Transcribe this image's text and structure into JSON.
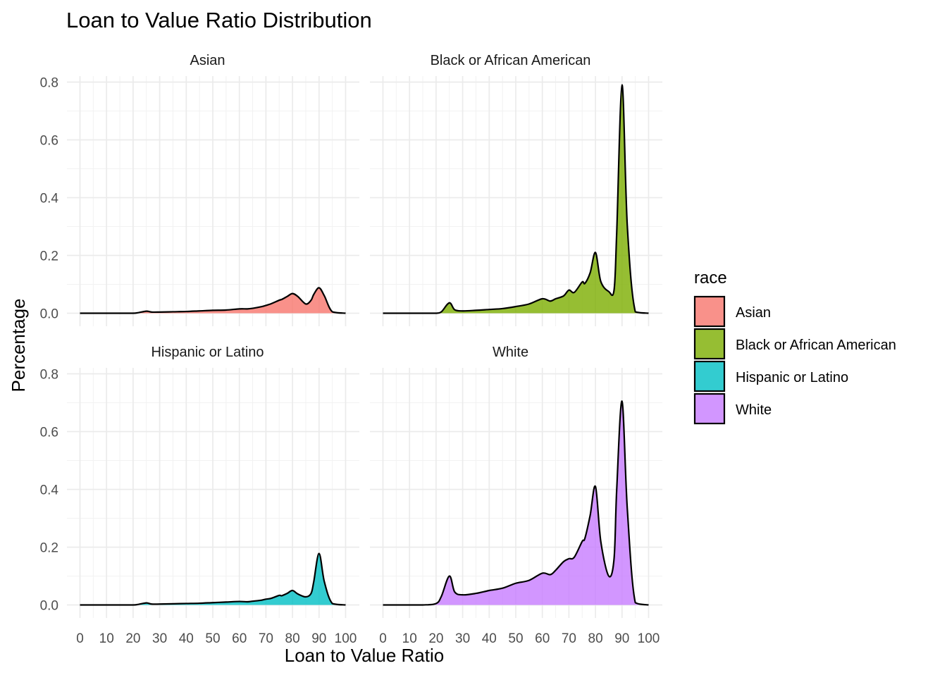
{
  "chart_data": {
    "type": "area",
    "title": "Loan to Value Ratio Distribution",
    "xlabel": "Loan to Value Ratio",
    "ylabel": "Percentage",
    "xlim": [
      0,
      100
    ],
    "ylim": [
      0,
      0.8
    ],
    "x_ticks": [
      0,
      10,
      20,
      30,
      40,
      50,
      60,
      70,
      80,
      90,
      100
    ],
    "y_ticks": [
      0.0,
      0.2,
      0.4,
      0.6,
      0.8
    ],
    "y_tick_labels": [
      "0.0",
      "0.2",
      "0.4",
      "0.6",
      "0.8"
    ],
    "grid": true,
    "legend": {
      "title": "race",
      "position": "right"
    },
    "x": [
      0,
      5,
      10,
      15,
      20,
      22,
      25,
      27,
      30,
      35,
      40,
      45,
      50,
      55,
      60,
      63,
      65,
      68,
      70,
      72,
      75,
      76,
      78,
      80,
      82,
      85,
      87,
      88,
      90,
      92,
      95,
      100
    ],
    "series": [
      {
        "name": "Asian",
        "color": "#F8766D",
        "values": [
          0,
          0,
          0,
          0,
          0,
          0.002,
          0.007,
          0.004,
          0.004,
          0.005,
          0.006,
          0.008,
          0.01,
          0.011,
          0.015,
          0.015,
          0.017,
          0.022,
          0.027,
          0.033,
          0.045,
          0.048,
          0.058,
          0.068,
          0.058,
          0.032,
          0.045,
          0.065,
          0.088,
          0.06,
          0.005,
          0
        ]
      },
      {
        "name": "Black or African American",
        "color": "#7CAE00",
        "values": [
          0,
          0,
          0,
          0,
          0,
          0.005,
          0.036,
          0.012,
          0.008,
          0.01,
          0.013,
          0.016,
          0.023,
          0.032,
          0.05,
          0.042,
          0.05,
          0.06,
          0.08,
          0.072,
          0.108,
          0.103,
          0.14,
          0.21,
          0.11,
          0.075,
          0.08,
          0.28,
          0.79,
          0.3,
          0.005,
          0
        ]
      },
      {
        "name": "Hispanic or Latino",
        "color": "#00BFC4",
        "values": [
          0,
          0,
          0,
          0,
          0,
          0.002,
          0.007,
          0.003,
          0.003,
          0.004,
          0.005,
          0.006,
          0.008,
          0.01,
          0.012,
          0.011,
          0.013,
          0.016,
          0.02,
          0.023,
          0.033,
          0.032,
          0.04,
          0.05,
          0.038,
          0.028,
          0.04,
          0.08,
          0.178,
          0.08,
          0.005,
          0
        ]
      },
      {
        "name": "White",
        "color": "#C77CFF",
        "values": [
          0,
          0,
          0,
          0,
          0.005,
          0.03,
          0.1,
          0.045,
          0.035,
          0.04,
          0.05,
          0.058,
          0.075,
          0.085,
          0.11,
          0.105,
          0.12,
          0.15,
          0.16,
          0.165,
          0.22,
          0.23,
          0.31,
          0.41,
          0.22,
          0.1,
          0.16,
          0.4,
          0.705,
          0.33,
          0.008,
          0
        ]
      }
    ],
    "facets": [
      {
        "label": "Asian",
        "series_index": 0
      },
      {
        "label": "Black or African American",
        "series_index": 1
      },
      {
        "label": "Hispanic or Latino",
        "series_index": 2
      },
      {
        "label": "White",
        "series_index": 3
      }
    ]
  }
}
